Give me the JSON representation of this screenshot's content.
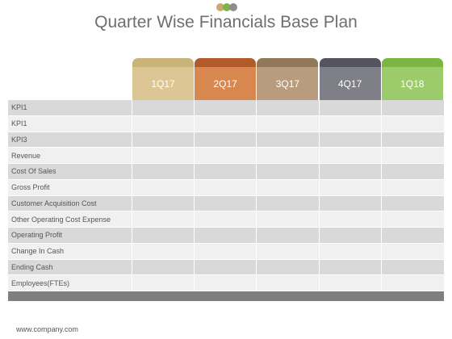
{
  "slide": {
    "title": "Quarter Wise Financials Base Plan",
    "footer": "www.company.com"
  },
  "logo_colors": [
    "#c9a96e",
    "#7fb24d",
    "#8e8e8e"
  ],
  "columns": [
    {
      "label": "1Q17",
      "tab_color": "#c8b479",
      "cell_color": "#dcc694"
    },
    {
      "label": "2Q17",
      "tab_color": "#b35a2b",
      "cell_color": "#d8884f"
    },
    {
      "label": "3Q17",
      "tab_color": "#917858",
      "cell_color": "#b99c7d"
    },
    {
      "label": "4Q17",
      "tab_color": "#54545f",
      "cell_color": "#7f7f87"
    },
    {
      "label": "1Q18",
      "tab_color": "#7db543",
      "cell_color": "#9ccb6c"
    }
  ],
  "rows": [
    {
      "label": "KPI1"
    },
    {
      "label": "KPI1"
    },
    {
      "label": "KPI3"
    },
    {
      "label": "Revenue"
    },
    {
      "label": "Cost Of Sales"
    },
    {
      "label": "Gross Profit"
    },
    {
      "label": "Customer Acquisition Cost"
    },
    {
      "label": "Other Operating Cost Expense"
    },
    {
      "label": "Operating Profit"
    },
    {
      "label": "Change In Cash"
    },
    {
      "label": "Ending Cash"
    },
    {
      "label": "Employees(FTEs)"
    }
  ]
}
